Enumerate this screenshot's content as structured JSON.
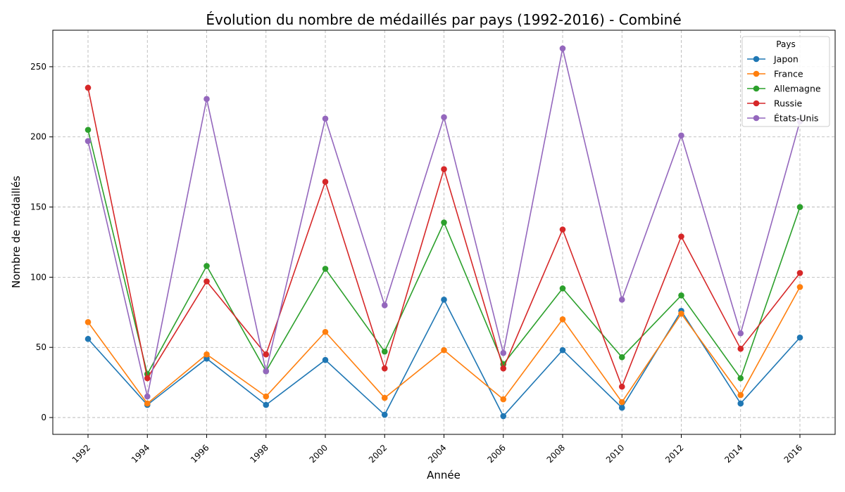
{
  "chart_data": {
    "type": "line",
    "title": "Évolution du nombre de médaillés par pays (1992-2016) - Combiné",
    "xlabel": "Année",
    "ylabel": "Nombre de médaillés",
    "x": [
      1992,
      1994,
      1996,
      1998,
      2000,
      2002,
      2004,
      2006,
      2008,
      2010,
      2012,
      2014,
      2016
    ],
    "x_tick_labels": [
      "1992",
      "1994",
      "1996",
      "1998",
      "2000",
      "2002",
      "2004",
      "2006",
      "2008",
      "2010",
      "2012",
      "2014",
      "2016"
    ],
    "ylim": [
      -12,
      276
    ],
    "y_ticks": [
      0,
      50,
      100,
      150,
      200,
      250
    ],
    "y_tick_labels": [
      "0",
      "50",
      "100",
      "150",
      "200",
      "250"
    ],
    "grid": true,
    "legend": {
      "title": "Pays",
      "placement": "top-right"
    },
    "series": [
      {
        "name": "Japon",
        "color": "#1f77b4",
        "values": [
          56,
          9,
          42,
          9,
          41,
          2,
          84,
          1,
          48,
          7,
          76,
          10,
          57
        ]
      },
      {
        "name": "France",
        "color": "#ff7f0e",
        "values": [
          68,
          10,
          45,
          15,
          61,
          14,
          48,
          13,
          70,
          11,
          74,
          16,
          93
        ]
      },
      {
        "name": "Allemagne",
        "color": "#2ca02c",
        "values": [
          205,
          31,
          108,
          33,
          106,
          47,
          139,
          38,
          92,
          43,
          87,
          28,
          150
        ]
      },
      {
        "name": "Russie",
        "color": "#d62728",
        "values": [
          235,
          28,
          97,
          45,
          168,
          35,
          177,
          35,
          134,
          22,
          129,
          49,
          103
        ]
      },
      {
        "name": "États-Unis",
        "color": "#9467bd",
        "values": [
          197,
          15,
          227,
          33,
          213,
          80,
          214,
          46,
          263,
          84,
          201,
          60,
          211
        ]
      }
    ]
  }
}
